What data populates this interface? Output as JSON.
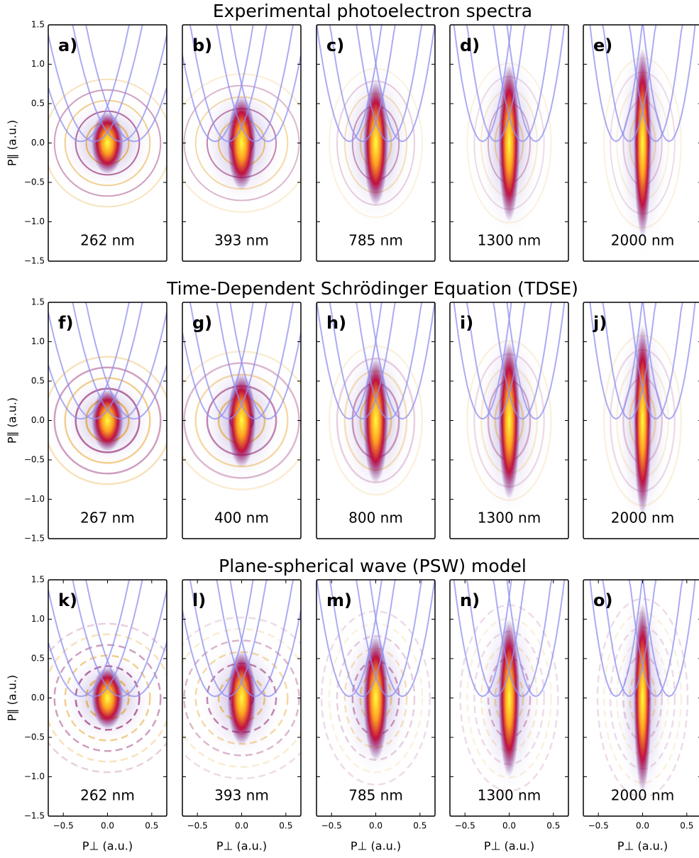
{
  "chart_data": [
    {
      "type": "heatmap",
      "title": "Experimental photoelectron spectra",
      "panels": [
        {
          "label": "a)",
          "wavelength": "262 nm"
        },
        {
          "label": "b)",
          "wavelength": "393 nm"
        },
        {
          "label": "c)",
          "wavelength": "785 nm"
        },
        {
          "label": "d)",
          "wavelength": "1300 nm"
        },
        {
          "label": "e)",
          "wavelength": "2000 nm"
        }
      ],
      "ylabel": "P∥ (a.u.)",
      "xlim": [
        -0.67,
        0.67
      ],
      "ylim": [
        -1.5,
        1.5
      ],
      "yticks": [
        {
          "value": -1.5,
          "label": "−1.5"
        },
        {
          "value": -1.0,
          "label": "−1.0"
        },
        {
          "value": -0.5,
          "label": "−0.5"
        },
        {
          "value": 0.0,
          "label": "0.0"
        },
        0.5,
        {
          "value": 1.0,
          "label": "1.0"
        },
        1.5
      ]
    },
    {
      "type": "heatmap",
      "title": "Time-Dependent Schrödinger Equation (TDSE)",
      "panels": [
        {
          "label": "f)",
          "wavelength": "267 nm"
        },
        {
          "label": "g)",
          "wavelength": "400 nm"
        },
        {
          "label": "h)",
          "wavelength": "800 nm"
        },
        {
          "label": "i)",
          "wavelength": "1300 nm"
        },
        {
          "label": "j)",
          "wavelength": "2000 nm"
        }
      ],
      "ylabel": "P∥ (a.u.)",
      "xlim": [
        -0.67,
        0.67
      ],
      "ylim": [
        -1.5,
        1.5
      ],
      "yticks": [
        {
          "value": -1.5,
          "label": "−1.5"
        },
        {
          "value": -1.0,
          "label": "−1.0"
        },
        {
          "value": -0.5,
          "label": "−0.5"
        },
        {
          "value": 0.0,
          "label": "0.0"
        },
        0.5,
        {
          "value": 1.0,
          "label": "1.0"
        },
        1.5
      ]
    },
    {
      "type": "heatmap",
      "title": "Plane-spherical wave (PSW) model",
      "panels": [
        {
          "label": "k)",
          "wavelength": "262 nm"
        },
        {
          "label": "l)",
          "wavelength": "393 nm"
        },
        {
          "label": "m)",
          "wavelength": "785 nm"
        },
        {
          "label": "n)",
          "wavelength": "1300 nm"
        },
        {
          "label": "o)",
          "wavelength": "2000 nm"
        }
      ],
      "ylabel": "P∥ (a.u.)",
      "xlabel": "P⊥ (a.u.)",
      "xlim": [
        -0.67,
        0.67
      ],
      "ylim": [
        -1.5,
        1.5
      ],
      "yticks": [
        {
          "value": -1.5,
          "label": "−1.5"
        },
        {
          "value": -1.0,
          "label": "−1.0"
        },
        {
          "value": -0.5,
          "label": "−0.5"
        },
        {
          "value": 0.0,
          "label": "0.0"
        },
        0.5,
        {
          "value": 1.0,
          "label": "1.0"
        },
        1.5
      ],
      "xticks": [
        {
          "value": -0.5,
          "label": "−0.5"
        },
        {
          "value": 0.0,
          "label": "0.0"
        },
        0.5
      ]
    }
  ]
}
